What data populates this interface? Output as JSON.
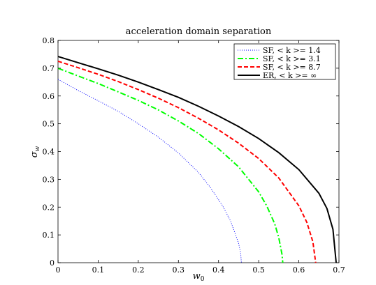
{
  "chart_data": {
    "type": "line",
    "title": "acceleration domain separation",
    "xlabel": "w",
    "xlabel_sub": "0",
    "ylabel": "σ",
    "ylabel_sub": "w",
    "xlim": [
      0,
      0.7
    ],
    "ylim": [
      0,
      0.8
    ],
    "xticks": [
      0,
      0.1,
      0.2,
      0.3,
      0.4,
      0.5,
      0.6,
      0.7
    ],
    "yticks": [
      0,
      0.1,
      0.2,
      0.3,
      0.4,
      0.5,
      0.6,
      0.7,
      0.8
    ],
    "xtick_labels": [
      "0",
      "0.1",
      "0.2",
      "0.3",
      "0.4",
      "0.5",
      "0.6",
      "0.7"
    ],
    "ytick_labels": [
      "0",
      "0.1",
      "0.2",
      "0.3",
      "0.4",
      "0.5",
      "0.6",
      "0.7",
      "0.8"
    ],
    "grid": false,
    "legend_position": "top-right",
    "series": [
      {
        "name": "SF, <k>= 1.4",
        "label": "SF, < k >= 1.4",
        "color": "#0000ff",
        "style": "dotted",
        "x": [
          0,
          0.05,
          0.1,
          0.15,
          0.2,
          0.25,
          0.3,
          0.35,
          0.38,
          0.41,
          0.43,
          0.44,
          0.45,
          0.455,
          0.457
        ],
        "y": [
          0.66,
          0.62,
          0.583,
          0.545,
          0.5,
          0.452,
          0.395,
          0.325,
          0.27,
          0.205,
          0.15,
          0.11,
          0.07,
          0.035,
          0.0
        ]
      },
      {
        "name": "SF, <k>= 3.1",
        "label": "SF, < k >= 3.1",
        "color": "#00ff00",
        "style": "dashdot",
        "x": [
          0,
          0.05,
          0.1,
          0.15,
          0.2,
          0.25,
          0.3,
          0.35,
          0.4,
          0.45,
          0.5,
          0.52,
          0.54,
          0.55,
          0.558,
          0.56
        ],
        "y": [
          0.7,
          0.672,
          0.645,
          0.615,
          0.584,
          0.55,
          0.51,
          0.465,
          0.41,
          0.345,
          0.255,
          0.205,
          0.14,
          0.09,
          0.03,
          0.0
        ]
      },
      {
        "name": "SF, <k>= 8.7",
        "label": "SF, < k >= 8.7",
        "color": "#ff0000",
        "style": "dashed",
        "x": [
          0,
          0.05,
          0.1,
          0.15,
          0.2,
          0.25,
          0.3,
          0.35,
          0.4,
          0.45,
          0.5,
          0.55,
          0.6,
          0.62,
          0.635,
          0.642
        ],
        "y": [
          0.725,
          0.702,
          0.678,
          0.652,
          0.623,
          0.592,
          0.558,
          0.52,
          0.478,
          0.43,
          0.375,
          0.305,
          0.205,
          0.145,
          0.075,
          0.0
        ]
      },
      {
        "name": "ER, <k>= ∞",
        "label": "ER, < k >= ∞",
        "color": "#000000",
        "style": "solid",
        "x": [
          0,
          0.05,
          0.1,
          0.15,
          0.2,
          0.25,
          0.3,
          0.35,
          0.4,
          0.45,
          0.5,
          0.55,
          0.6,
          0.65,
          0.67,
          0.685,
          0.693
        ],
        "y": [
          0.742,
          0.72,
          0.698,
          0.675,
          0.65,
          0.623,
          0.595,
          0.563,
          0.528,
          0.49,
          0.447,
          0.396,
          0.335,
          0.25,
          0.195,
          0.12,
          0.0
        ]
      }
    ]
  }
}
